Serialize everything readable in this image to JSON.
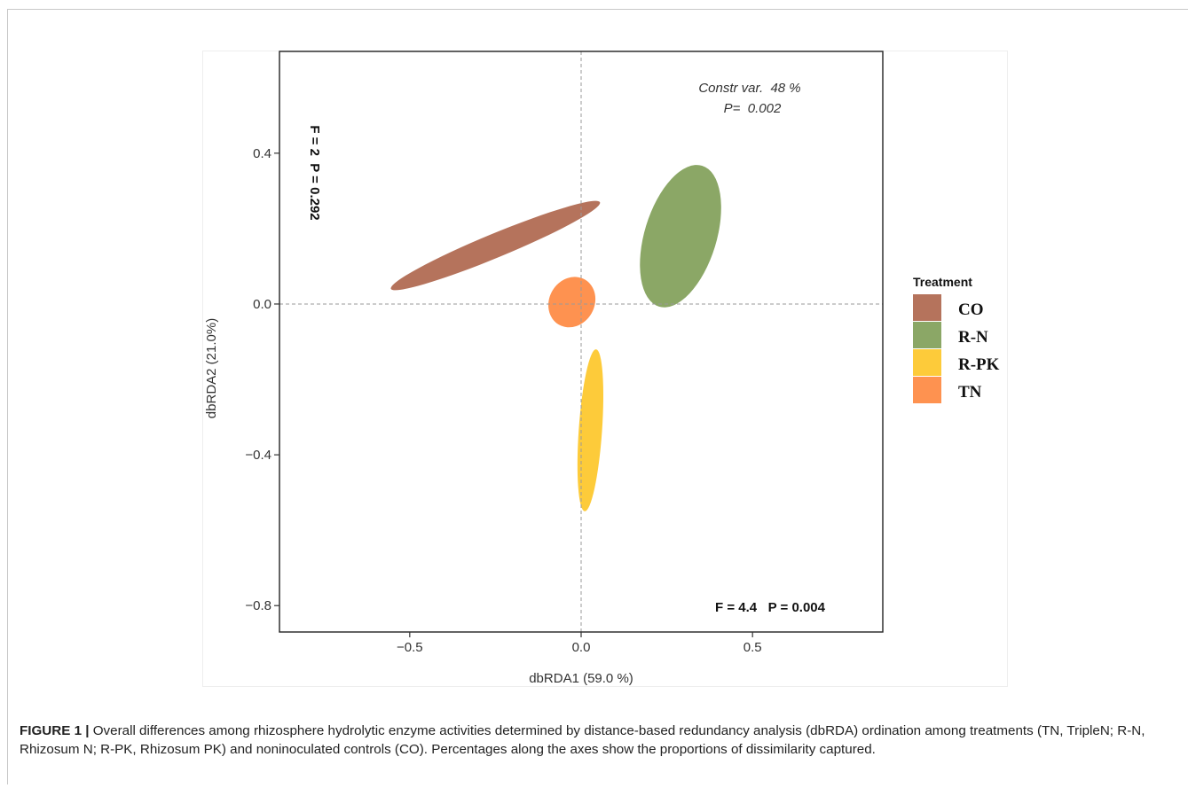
{
  "chart_data": {
    "type": "scatter",
    "subtype": "dbRDA ordination with confidence ellipses",
    "xlabel": "dbRDA1 (59.0 %)",
    "ylabel": "dbRDA2 (21.0%)",
    "xlim": [
      -0.88,
      0.88
    ],
    "ylim": [
      -0.87,
      0.67
    ],
    "x_ticks": [
      -0.5,
      0.0,
      0.5
    ],
    "x_tick_labels": [
      "−0.5",
      "0.0",
      "0.5"
    ],
    "y_ticks": [
      0.4,
      0.0,
      -0.4,
      -0.8
    ],
    "y_tick_labels": [
      "0.4",
      "0.0",
      "−0.4",
      "−0.8"
    ],
    "grid": false,
    "zero_lines": true,
    "annotations": {
      "constr_var": "Constr var.  48 %",
      "p_value": "P=  0.002",
      "axis1_test": "F = 4.4   P = 0.004",
      "axis2_test": "F = 2  P = 0.292"
    },
    "legend": {
      "title": "Treatment",
      "position": "right"
    },
    "series": [
      {
        "name": "CO",
        "color": "#B5735C",
        "center": [
          -0.25,
          0.155
        ],
        "radius_a": 0.33,
        "radius_b": 0.035,
        "angle_deg": 22.5
      },
      {
        "name": "R-N",
        "color": "#8BA766",
        "center": [
          0.29,
          0.18
        ],
        "radius_a": 0.215,
        "radius_b": 0.105,
        "angle_deg": 73
      },
      {
        "name": "R-PK",
        "color": "#FDCB3A",
        "center": [
          0.027,
          -0.335
        ],
        "radius_a": 0.237,
        "radius_b": 0.034,
        "angle_deg": 86
      },
      {
        "name": "TN",
        "color": "#FE9250",
        "center": [
          -0.027,
          0.005
        ],
        "radius_a": 0.076,
        "radius_b": 0.066,
        "angle_deg": 60
      }
    ]
  },
  "caption": {
    "label": "FIGURE 1 |",
    "text": " Overall differences among rhizosphere hydrolytic enzyme activities determined by distance-based redundancy analysis (dbRDA) ordination among treatments (TN, TripleN; R-N, Rhizosum N; R-PK, Rhizosum PK) and noninoculated controls (CO). Percentages along the axes show the proportions of dissimilarity captured."
  }
}
